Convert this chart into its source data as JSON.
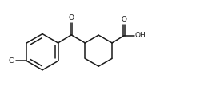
{
  "background": "#ffffff",
  "line_color": "#1a1a1a",
  "line_width": 1.1,
  "fig_width": 2.51,
  "fig_height": 1.28,
  "dpi": 100,
  "xlim": [
    0.0,
    10.5
  ],
  "ylim": [
    0.5,
    5.2
  ]
}
